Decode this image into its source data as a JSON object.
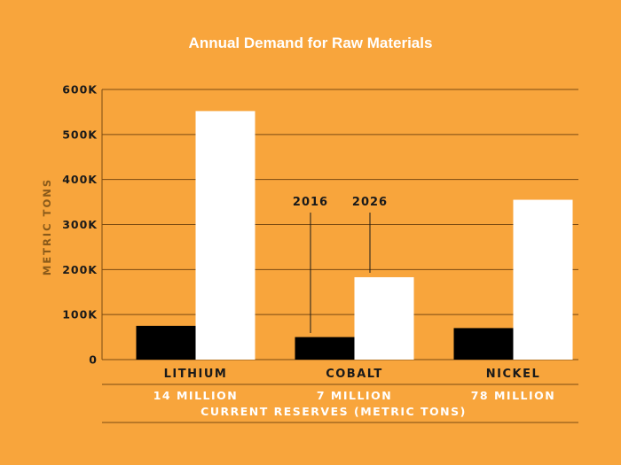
{
  "chart_data": {
    "type": "bar",
    "title": "Annual Demand for Raw Materials",
    "ylabel": "METRIC TONS",
    "ylim": [
      0,
      600000
    ],
    "y_ticks": [
      0,
      100000,
      200000,
      300000,
      400000,
      500000,
      600000
    ],
    "y_tick_labels": [
      "0",
      "100K",
      "200K",
      "300K",
      "400K",
      "500K",
      "600K"
    ],
    "categories": [
      "LITHIUM",
      "COBALT",
      "NICKEL"
    ],
    "series": [
      {
        "name": "2016",
        "values": [
          75000,
          50000,
          70000
        ],
        "color": "#000000"
      },
      {
        "name": "2026",
        "values": [
          552000,
          183000,
          355000
        ],
        "color": "#ffffff"
      }
    ],
    "reserves": [
      "14 MILLION",
      "7 MILLION",
      "78 MILLION"
    ],
    "reserves_label": "CURRENT RESERVES (METRIC TONS)",
    "grid": true,
    "legend": "annotations pointing at the COBALT bars"
  },
  "colors": {
    "background": "#f8a53c",
    "grid": "#7a4a12"
  }
}
